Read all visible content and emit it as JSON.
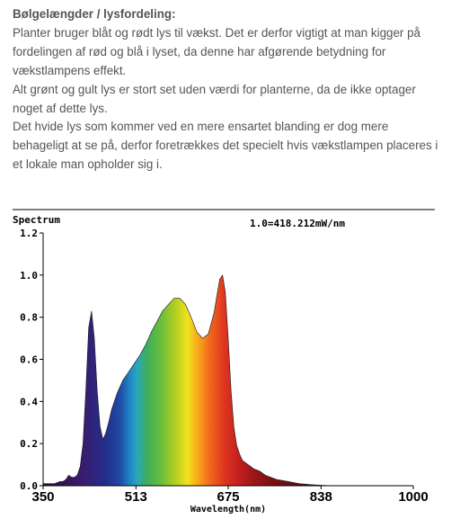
{
  "article": {
    "heading": "Bølgelængder / lysfordeling:",
    "paragraph1": "Planter bruger blåt og rødt lys til vækst. Det er derfor vigtigt at man kigger på fordelingen af rød og blå i lyset, da denne har afgørende betydning for vækstlampens effekt.",
    "paragraph2": "Alt grønt og gult lys er stort set uden værdi for planterne, da de ikke optager noget af dette lys.",
    "paragraph3": "Det hvide lys som kommer ved en mere ensartet blanding er dog mere behageligt at se på, derfor foretrækkes det specielt hvis vækstlampen placeres i et lokale man opholder sig i."
  },
  "chart_data": {
    "type": "area",
    "title": "Spectrum",
    "annotation": "1.0=418.212mW/nm",
    "xlabel": "Wavelength(nm)",
    "ylabel": "",
    "xlim": [
      350,
      1000
    ],
    "ylim": [
      0,
      1.2
    ],
    "x_ticks": [
      "350",
      "513",
      "675",
      "838",
      "1000"
    ],
    "y_ticks": [
      "0.0",
      "0.2",
      "0.4",
      "0.6",
      "0.8",
      "1.0",
      "1.2"
    ],
    "grid": false,
    "fill": "wavelength-colored spectrum",
    "series": [
      {
        "x": [
          350,
          360,
          370,
          380,
          385,
          390,
          395,
          400,
          405,
          410,
          415,
          420,
          425,
          430,
          435,
          440,
          445,
          450,
          455,
          460,
          465,
          470,
          475,
          480,
          490,
          500,
          510,
          520,
          530,
          540,
          550,
          560,
          570,
          580,
          590,
          600,
          610,
          620,
          630,
          640,
          650,
          655,
          660,
          665,
          670,
          675,
          680,
          685,
          690,
          695,
          700,
          710,
          720,
          730,
          740,
          760,
          780,
          800,
          820,
          840,
          860
        ],
        "y": [
          0.01,
          0.01,
          0.01,
          0.02,
          0.02,
          0.03,
          0.05,
          0.04,
          0.04,
          0.05,
          0.09,
          0.2,
          0.45,
          0.75,
          0.83,
          0.7,
          0.45,
          0.28,
          0.22,
          0.25,
          0.3,
          0.36,
          0.4,
          0.44,
          0.5,
          0.54,
          0.58,
          0.62,
          0.67,
          0.73,
          0.78,
          0.83,
          0.86,
          0.89,
          0.89,
          0.86,
          0.8,
          0.73,
          0.7,
          0.72,
          0.82,
          0.9,
          0.98,
          1.0,
          0.92,
          0.7,
          0.45,
          0.28,
          0.19,
          0.15,
          0.12,
          0.1,
          0.08,
          0.07,
          0.05,
          0.03,
          0.02,
          0.01,
          0.005,
          0.002,
          0.0
        ]
      }
    ]
  }
}
